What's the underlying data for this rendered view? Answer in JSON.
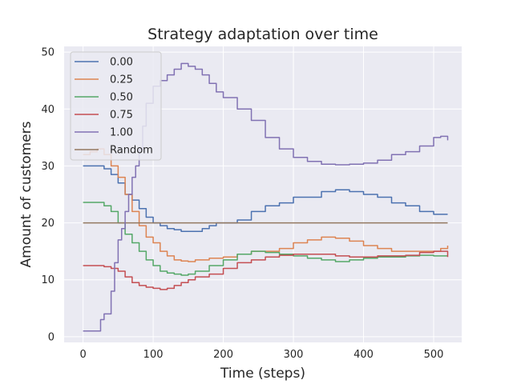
{
  "chart_data": {
    "type": "line",
    "title": "Strategy adaptation over time",
    "xlabel": "Time (steps)",
    "ylabel": "Amount of customers",
    "xlim": [
      -27,
      540
    ],
    "ylim": [
      -1,
      51
    ],
    "xticks": [
      0,
      100,
      200,
      300,
      400,
      500
    ],
    "yticks": [
      0,
      10,
      20,
      30,
      40,
      50
    ],
    "grid": true,
    "legend_placement": "upper-left",
    "background": "#eaeaf2",
    "series": [
      {
        "name": "0.00",
        "color": "#4c72b0",
        "x": [
          0,
          20,
          30,
          40,
          50,
          60,
          70,
          80,
          90,
          100,
          110,
          120,
          130,
          140,
          150,
          160,
          170,
          180,
          190,
          200,
          220,
          240,
          260,
          280,
          300,
          320,
          340,
          360,
          380,
          400,
          420,
          440,
          460,
          480,
          500,
          510,
          520
        ],
        "y": [
          30,
          30,
          29.5,
          28.5,
          27,
          25,
          24,
          22.5,
          21,
          20,
          19.5,
          19,
          18.8,
          18.5,
          18.5,
          18.5,
          19,
          19.5,
          20,
          20,
          20.5,
          22,
          23,
          23.5,
          24.5,
          24.5,
          25.5,
          25.8,
          25.5,
          25,
          24.5,
          23.5,
          23,
          22,
          21.5,
          21.5,
          21.5
        ]
      },
      {
        "name": "0.25",
        "color": "#dd8452",
        "x": [
          0,
          10,
          20,
          30,
          40,
          50,
          60,
          70,
          80,
          90,
          100,
          110,
          120,
          130,
          140,
          150,
          160,
          180,
          200,
          220,
          240,
          260,
          280,
          300,
          320,
          340,
          360,
          380,
          400,
          420,
          440,
          460,
          480,
          500,
          510,
          520
        ],
        "y": [
          32,
          32.5,
          33,
          32,
          30,
          28,
          25,
          22,
          19.5,
          17.5,
          16.5,
          15,
          14.2,
          13.5,
          13.3,
          13.2,
          13.5,
          13.8,
          14,
          14.5,
          15,
          15,
          15.5,
          16.5,
          17,
          17.5,
          17.3,
          16.8,
          16,
          15.5,
          15,
          15,
          15,
          15,
          15.5,
          16
        ]
      },
      {
        "name": "0.50",
        "color": "#55a868",
        "x": [
          0,
          20,
          30,
          40,
          50,
          60,
          70,
          80,
          90,
          100,
          110,
          120,
          130,
          140,
          150,
          160,
          180,
          200,
          220,
          240,
          260,
          280,
          300,
          320,
          340,
          360,
          380,
          400,
          420,
          440,
          460,
          480,
          500,
          520
        ],
        "y": [
          23.6,
          23.6,
          23,
          22,
          20,
          18,
          16.5,
          15,
          13.5,
          12.5,
          11.5,
          11.2,
          11,
          10.8,
          11,
          11.5,
          12.5,
          13.5,
          14.5,
          15,
          14.8,
          14.5,
          14.2,
          13.8,
          13.5,
          13.2,
          13.5,
          13.8,
          14,
          14,
          14.2,
          14.3,
          14.2,
          14.2
        ]
      },
      {
        "name": "0.75",
        "color": "#c44e52",
        "x": [
          0,
          20,
          30,
          40,
          50,
          60,
          70,
          80,
          90,
          100,
          110,
          120,
          130,
          140,
          150,
          160,
          180,
          200,
          220,
          240,
          260,
          280,
          300,
          320,
          340,
          360,
          380,
          400,
          420,
          440,
          460,
          480,
          500,
          520
        ],
        "y": [
          12.5,
          12.5,
          12.3,
          12,
          11.5,
          10.5,
          9.5,
          9,
          8.7,
          8.5,
          8.3,
          8.5,
          9,
          9.5,
          10,
          10.5,
          11,
          12,
          13,
          13.5,
          14,
          14.3,
          14.5,
          14.5,
          14.5,
          14.2,
          14,
          14,
          14.2,
          14.2,
          14.3,
          14.8,
          15,
          14
        ]
      },
      {
        "name": "1.00",
        "color": "#8172b3",
        "x": [
          0,
          20,
          25,
          30,
          40,
          45,
          50,
          55,
          60,
          65,
          70,
          75,
          80,
          85,
          90,
          100,
          110,
          120,
          130,
          140,
          150,
          160,
          170,
          180,
          190,
          200,
          220,
          240,
          260,
          280,
          300,
          320,
          340,
          360,
          380,
          400,
          420,
          440,
          460,
          480,
          500,
          510,
          520
        ],
        "y": [
          1,
          1,
          3,
          4,
          8,
          13,
          17,
          19,
          22,
          25,
          28,
          30,
          33,
          37,
          41,
          44,
          45,
          46,
          47,
          48,
          47.5,
          47,
          46,
          44.5,
          43,
          42,
          40,
          38,
          35,
          33,
          31.5,
          30.8,
          30.3,
          30.2,
          30.3,
          30.5,
          31,
          32,
          32.5,
          33.5,
          35,
          35.2,
          34.5
        ]
      },
      {
        "name": "Random",
        "color": "#937860",
        "x": [
          0,
          520
        ],
        "y": [
          20,
          20
        ]
      }
    ]
  }
}
